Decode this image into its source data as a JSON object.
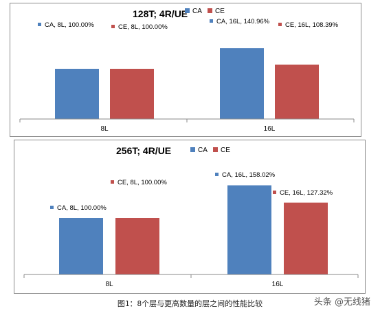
{
  "chart_data": [
    {
      "type": "bar",
      "title": "128T; 4R/UE",
      "categories": [
        "8L",
        "16L"
      ],
      "series": [
        {
          "name": "CA",
          "color": "#4F81BD",
          "values": [
            100.0,
            140.96
          ],
          "data_labels": [
            "CA, 8L, 100.00%",
            "CA, 16L, 140.96%"
          ]
        },
        {
          "name": "CE",
          "color": "#C0504D",
          "values": [
            100.0,
            108.39
          ],
          "data_labels": [
            "CE, 8L, 100.00%",
            "CE, 16L, 108.39%"
          ]
        }
      ],
      "legend_position": "top",
      "grid": false
    },
    {
      "type": "bar",
      "title": "256T; 4R/UE",
      "categories": [
        "8L",
        "16L"
      ],
      "series": [
        {
          "name": "CA",
          "color": "#4F81BD",
          "values": [
            100.0,
            158.02
          ],
          "data_labels": [
            "CA, 8L, 100.00%",
            "CA, 16L, 158.02%"
          ]
        },
        {
          "name": "CE",
          "color": "#C0504D",
          "values": [
            100.0,
            127.32
          ],
          "data_labels": [
            "CE, 8L, 100.00%",
            "CE, 16L, 127.32%"
          ]
        }
      ],
      "legend_position": "top",
      "grid": false
    }
  ],
  "caption": "图1：8个层与更高数量的层之间的性能比较",
  "watermark": "头条 @无线猪"
}
